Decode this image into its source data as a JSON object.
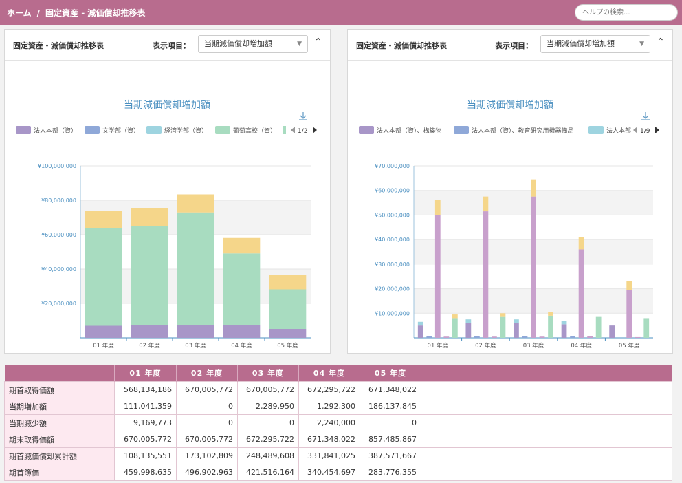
{
  "header": {
    "breadcrumb": [
      "ホーム",
      "固定資産 - 減価償却推移表"
    ],
    "help_placeholder": "ヘルプの検索..."
  },
  "panels": [
    {
      "title": "固定資産・減価償却推移表",
      "select_label": "表示項目：",
      "select_value": "当期減価償却増加額",
      "chart_title": "当期減価償却増加額",
      "legend": [
        "法人本部（資）",
        "文学部（資）",
        "経済学部（資）",
        "葡萄高校（資）"
      ],
      "legend_page": "1/2"
    },
    {
      "title": "固定資産・減価償却推移表",
      "select_label": "表示項目：",
      "select_value": "当期減価償却増加額",
      "chart_title": "当期減価償却増加額",
      "legend": [
        "法人本部（資）、構築物",
        "法人本部（資）、教育研究用機器備品",
        "法人本部"
      ],
      "legend_page": "1/9"
    }
  ],
  "chart_data": [
    {
      "type": "bar",
      "stacked": true,
      "title": "当期減価償却増加額",
      "categories": [
        "01 年度",
        "02 年度",
        "03 年度",
        "04 年度",
        "05 年度"
      ],
      "ylim": [
        0,
        100000000
      ],
      "y_ticks": [
        "¥20,000,000",
        "¥40,000,000",
        "¥60,000,000",
        "¥80,000,000",
        "¥100,000,000"
      ],
      "series": [
        {
          "name": "法人本部（資）",
          "color": "#a896c8",
          "values": [
            7000000,
            7200000,
            7400000,
            7600000,
            5200000
          ]
        },
        {
          "name": "文学部（資）",
          "color": "#8fa8d8",
          "values": [
            0,
            0,
            0,
            0,
            0
          ]
        },
        {
          "name": "経済学部（資）",
          "color": "#9ed4e0",
          "values": [
            0,
            0,
            0,
            0,
            0
          ]
        },
        {
          "name": "葡萄高校（資）",
          "color": "#a8dcc0",
          "values": [
            57000000,
            58000000,
            65500000,
            41500000,
            23000000
          ]
        },
        {
          "name": "",
          "color": "#f5d68a",
          "values": [
            10000000,
            10000000,
            10500000,
            9000000,
            8500000
          ]
        }
      ]
    },
    {
      "type": "bar",
      "stacked": true,
      "grouped": true,
      "title": "当期減価償却増加額",
      "categories": [
        "01 年度",
        "02 年度",
        "03 年度",
        "04 年度",
        "05 年度"
      ],
      "ylim": [
        0,
        70000000
      ],
      "y_ticks": [
        "¥10,000,000",
        "¥20,000,000",
        "¥30,000,000",
        "¥40,000,000",
        "¥50,000,000",
        "¥60,000,000",
        "¥70,000,000"
      ],
      "groups": [
        [
          {
            "segments": [
              {
                "value": 5000000,
                "color": "#a896c8"
              },
              {
                "value": 1500000,
                "color": "#9ed4e0"
              }
            ]
          },
          {
            "segments": [
              {
                "value": 600000,
                "color": "#8fa8d8"
              }
            ]
          },
          {
            "segments": [
              {
                "value": 50000000,
                "color": "#c8a0cc"
              },
              {
                "value": 6000000,
                "color": "#f5d68a"
              }
            ]
          },
          {
            "segments": [
              {
                "value": 500000,
                "color": "#c8a0cc"
              }
            ]
          },
          {
            "segments": [
              {
                "value": 8000000,
                "color": "#a8dcc0"
              },
              {
                "value": 1500000,
                "color": "#f5d68a"
              }
            ]
          }
        ],
        [
          {
            "segments": [
              {
                "value": 6000000,
                "color": "#a896c8"
              },
              {
                "value": 1500000,
                "color": "#9ed4e0"
              }
            ]
          },
          {
            "segments": [
              {
                "value": 600000,
                "color": "#8fa8d8"
              }
            ]
          },
          {
            "segments": [
              {
                "value": 51500000,
                "color": "#c8a0cc"
              },
              {
                "value": 6000000,
                "color": "#f5d68a"
              }
            ]
          },
          {
            "segments": [
              {
                "value": 500000,
                "color": "#c8a0cc"
              }
            ]
          },
          {
            "segments": [
              {
                "value": 8500000,
                "color": "#a8dcc0"
              },
              {
                "value": 1500000,
                "color": "#f5d68a"
              }
            ]
          }
        ],
        [
          {
            "segments": [
              {
                "value": 6000000,
                "color": "#a896c8"
              },
              {
                "value": 1500000,
                "color": "#9ed4e0"
              }
            ]
          },
          {
            "segments": [
              {
                "value": 600000,
                "color": "#8fa8d8"
              }
            ]
          },
          {
            "segments": [
              {
                "value": 57500000,
                "color": "#c8a0cc"
              },
              {
                "value": 7000000,
                "color": "#f5d68a"
              }
            ]
          },
          {
            "segments": [
              {
                "value": 500000,
                "color": "#c8a0cc"
              }
            ]
          },
          {
            "segments": [
              {
                "value": 9000000,
                "color": "#a8dcc0"
              },
              {
                "value": 1500000,
                "color": "#f5d68a"
              }
            ]
          }
        ],
        [
          {
            "segments": [
              {
                "value": 5500000,
                "color": "#a896c8"
              },
              {
                "value": 1500000,
                "color": "#9ed4e0"
              }
            ]
          },
          {
            "segments": [
              {
                "value": 600000,
                "color": "#8fa8d8"
              }
            ]
          },
          {
            "segments": [
              {
                "value": 36000000,
                "color": "#c8a0cc"
              },
              {
                "value": 5000000,
                "color": "#f5d68a"
              }
            ]
          },
          {
            "segments": [
              {
                "value": 700000,
                "color": "#c8a0cc"
              }
            ]
          },
          {
            "segments": [
              {
                "value": 8500000,
                "color": "#a8dcc0"
              }
            ]
          }
        ],
        [
          {
            "segments": [
              {
                "value": 5000000,
                "color": "#a896c8"
              }
            ]
          },
          {
            "segments": [
              {
                "value": 0,
                "color": "#8fa8d8"
              }
            ]
          },
          {
            "segments": [
              {
                "value": 19500000,
                "color": "#c8a0cc"
              },
              {
                "value": 3500000,
                "color": "#f5d68a"
              }
            ]
          },
          {
            "segments": [
              {
                "value": 300000,
                "color": "#c8a0cc"
              }
            ]
          },
          {
            "segments": [
              {
                "value": 8000000,
                "color": "#a8dcc0"
              }
            ]
          }
        ]
      ]
    }
  ],
  "table": {
    "headers": [
      "",
      "01 年度",
      "02 年度",
      "03 年度",
      "04 年度",
      "05 年度",
      ""
    ],
    "rows": [
      {
        "label": "期首取得価額",
        "values": [
          "568,134,186",
          "670,005,772",
          "670,005,772",
          "672,295,722",
          "671,348,022"
        ]
      },
      {
        "label": "当期増加額",
        "values": [
          "111,041,359",
          "0",
          "2,289,950",
          "1,292,300",
          "186,137,845"
        ]
      },
      {
        "label": "当期減少額",
        "values": [
          "9,169,773",
          "0",
          "0",
          "2,240,000",
          "0"
        ]
      },
      {
        "label": "期末取得価額",
        "values": [
          "670,005,772",
          "670,005,772",
          "672,295,722",
          "671,348,022",
          "857,485,867"
        ]
      },
      {
        "label": "期首減価償却累計額",
        "values": [
          "108,135,551",
          "173,102,809",
          "248,489,608",
          "331,841,025",
          "387,571,667"
        ]
      },
      {
        "label": "期首簿価",
        "values": [
          "459,998,635",
          "496,902,963",
          "421,516,164",
          "340,454,697",
          "283,776,355"
        ]
      }
    ]
  }
}
